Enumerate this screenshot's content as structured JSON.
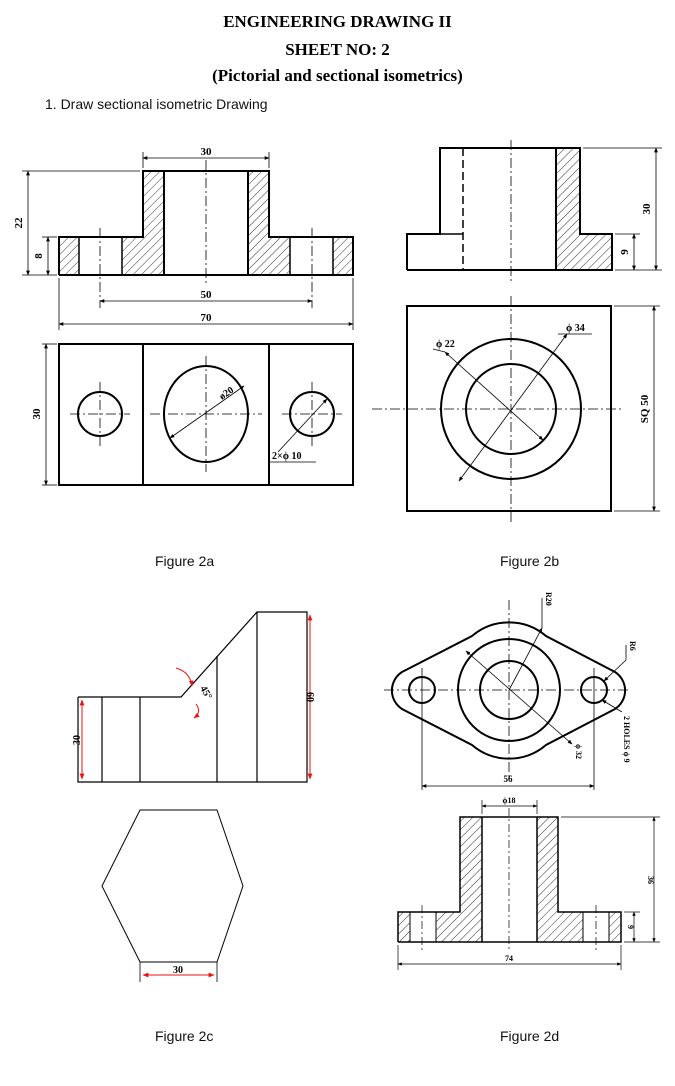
{
  "header": {
    "title": "ENGINEERING DRAWING II",
    "sheet": "SHEET NO: 2",
    "subtitle": "(Pictorial and sectional isometrics)"
  },
  "question": "1.   Draw sectional isometric Drawing",
  "figures": {
    "fig2a": {
      "caption": "Figure 2a",
      "dims": {
        "top": "30",
        "height": "22",
        "base": "8",
        "holes": "50",
        "length": "70",
        "width": "30",
        "bore": "ø20",
        "holes_dia": "2×ϕ 10"
      }
    },
    "fig2b": {
      "caption": "Figure 2b",
      "dims": {
        "height": "30",
        "base": "9",
        "inner": "ϕ 22",
        "outer": "ϕ 34",
        "square": "SQ 50"
      }
    },
    "fig2c": {
      "caption": "Figure 2c",
      "dims": {
        "left_h": "30",
        "angle": "45°",
        "tall_h": "60",
        "hex_side": "30"
      }
    },
    "fig2d": {
      "caption": "Figure 2d",
      "dims": {
        "radius": "R20",
        "small_r": "R6",
        "hole_note": "2 HOLES ϕ 9",
        "outer": "ϕ 32",
        "centers": "56",
        "bore": "ϕ18",
        "height": "36",
        "base": "9",
        "length": "74"
      }
    }
  }
}
